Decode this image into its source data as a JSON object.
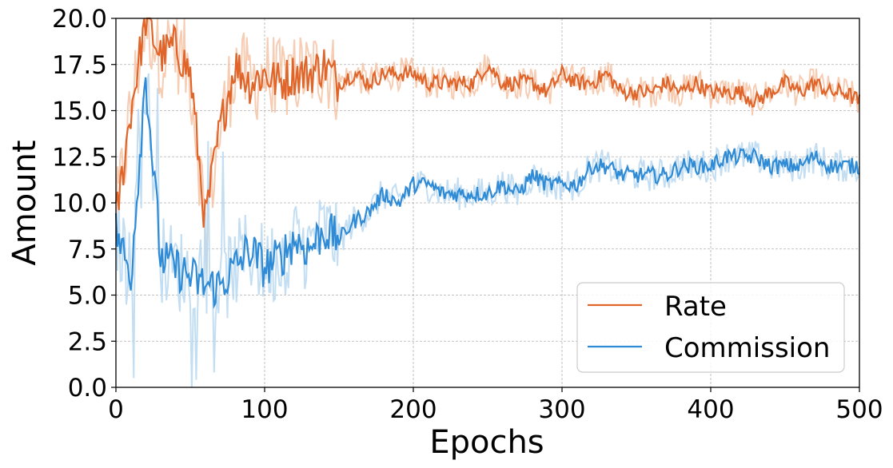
{
  "chart_data": {
    "type": "line",
    "title": "",
    "xlabel": "Epochs",
    "ylabel": "Amount",
    "xlim": [
      0,
      500
    ],
    "ylim": [
      0.0,
      20.0
    ],
    "x_ticks": [
      0,
      100,
      200,
      300,
      400,
      500
    ],
    "x_tick_labels": [
      "0",
      "100",
      "200",
      "300",
      "400",
      "500"
    ],
    "y_ticks": [
      0.0,
      2.5,
      5.0,
      7.5,
      10.0,
      12.5,
      15.0,
      17.5,
      20.0
    ],
    "y_tick_labels": [
      "0.0",
      "2.5",
      "5.0",
      "7.5",
      "10.0",
      "12.5",
      "15.0",
      "17.5",
      "20.0"
    ],
    "grid": true,
    "legend_position": "bottom-right",
    "series": [
      {
        "name": "Rate",
        "color": "#e0652a",
        "raw_color": "#f4c3a6",
        "x_step": 10,
        "values": [
          9,
          15,
          20,
          18,
          18.5,
          17,
          9,
          14,
          17.5,
          16.5,
          17,
          16.5,
          17,
          17,
          17.5,
          16.5,
          17,
          16.5,
          17,
          17,
          17,
          16.5,
          16.5,
          16.5,
          16.5,
          17.5,
          16.5,
          16.5,
          16.5,
          16,
          17,
          16.5,
          16.5,
          17,
          16,
          16,
          16,
          16.5,
          16,
          16.5,
          16,
          16,
          16,
          15.5,
          16,
          16.5,
          16,
          16.5,
          16,
          16,
          15.5
        ]
      },
      {
        "name": "Commission",
        "color": "#2f8bd5",
        "raw_color": "#b9d8f0",
        "x_step": 10,
        "values": [
          8.5,
          6,
          17,
          7,
          6.5,
          6,
          5.5,
          5.5,
          6.5,
          7.5,
          6.5,
          7,
          8,
          7.5,
          8.5,
          8,
          9,
          9.5,
          10.5,
          10,
          11,
          11,
          10.5,
          10.5,
          10.5,
          10.5,
          11,
          10.5,
          11.5,
          11,
          11,
          11,
          12,
          12,
          11.5,
          11.5,
          11.5,
          11.5,
          12,
          12,
          12,
          12.5,
          12.5,
          12.5,
          12,
          12,
          12,
          12.5,
          12,
          12,
          12
        ]
      }
    ]
  }
}
